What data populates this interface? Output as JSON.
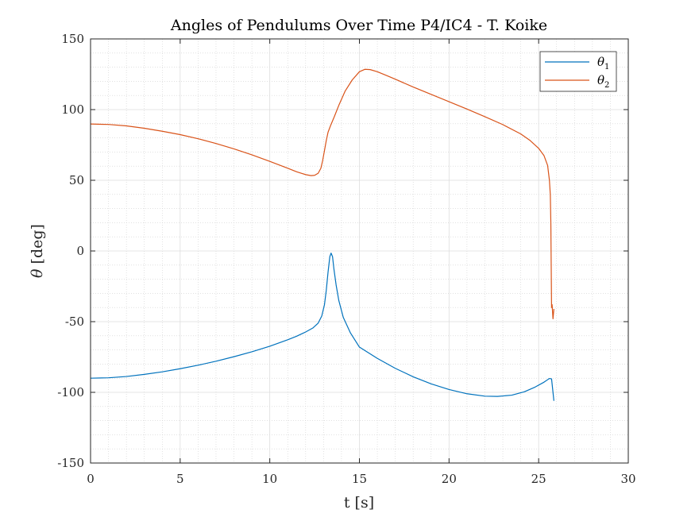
{
  "chart_data": {
    "type": "line",
    "title": "Angles of Pendulums Over Time P4/IC4 - T. Koike",
    "xlabel": "t [s]",
    "ylabel_symbol": "θ",
    "ylabel_unit": "[deg]",
    "xlim": [
      0,
      30
    ],
    "ylim": [
      -150,
      150
    ],
    "xticks": [
      0,
      5,
      10,
      15,
      20,
      25,
      30
    ],
    "yticks": [
      -150,
      -100,
      -50,
      0,
      50,
      100,
      150
    ],
    "xtick_labels": [
      "0",
      "5",
      "10",
      "15",
      "20",
      "25",
      "30"
    ],
    "ytick_labels": [
      "-150",
      "-100",
      "-50",
      "0",
      "50",
      "100",
      "150"
    ],
    "grid": true,
    "minor_grid": true,
    "legend_position": "top-right",
    "series": [
      {
        "name": "θ1",
        "legend_symbol": "θ",
        "legend_subscript": "1",
        "color": "#0072bd",
        "x": [
          0,
          1,
          2,
          3,
          4,
          5,
          6,
          7,
          8,
          9,
          10,
          11,
          11.5,
          12,
          12.4,
          12.7,
          12.9,
          13.05,
          13.15,
          13.25,
          13.35,
          13.42,
          13.5,
          13.58,
          13.7,
          13.85,
          14.1,
          14.5,
          15,
          16,
          17,
          18,
          19,
          20,
          21,
          22,
          22.7,
          23.5,
          24.2,
          24.8,
          25.3,
          25.6,
          25.72,
          25.8,
          25.85
        ],
        "y": [
          -90,
          -89.7,
          -88.8,
          -87.3,
          -85.5,
          -83.3,
          -80.8,
          -78,
          -74.8,
          -71.3,
          -67.4,
          -62.8,
          -60.3,
          -57.3,
          -54.5,
          -51,
          -46,
          -38,
          -28,
          -15,
          -4,
          -1.5,
          -4,
          -13,
          -24,
          -35,
          -47,
          -58,
          -68,
          -76,
          -83,
          -89,
          -94,
          -98,
          -101,
          -102.7,
          -102.9,
          -102,
          -99.6,
          -96.3,
          -92.8,
          -90.2,
          -90.5,
          -100,
          -106
        ]
      },
      {
        "name": "θ2",
        "legend_symbol": "θ",
        "legend_subscript": "2",
        "color": "#d95319",
        "x": [
          0,
          1,
          2,
          3,
          4,
          5,
          6,
          7,
          8,
          9,
          10,
          11,
          11.5,
          12,
          12.3,
          12.5,
          12.7,
          12.85,
          12.95,
          13.05,
          13.15,
          13.25,
          13.4,
          13.6,
          13.85,
          14.2,
          14.6,
          15,
          15.3,
          15.6,
          16,
          16.5,
          17,
          18,
          19,
          20,
          21,
          22,
          23,
          24,
          24.5,
          25,
          25.3,
          25.5,
          25.6,
          25.65,
          25.68,
          25.7,
          25.72,
          25.75,
          25.8,
          25.85
        ],
        "y": [
          89.8,
          89.5,
          88.5,
          86.8,
          84.7,
          82.3,
          79.4,
          76,
          72.2,
          68,
          63.4,
          58.5,
          56,
          54,
          53.3,
          53.5,
          55,
          58.5,
          64,
          71,
          78,
          84,
          89,
          95,
          103,
          113,
          121,
          126.8,
          128.5,
          128.3,
          126.8,
          124.2,
          121.5,
          116,
          110.8,
          105.6,
          100.4,
          95,
          89.4,
          82.8,
          78.4,
          72.6,
          67.4,
          60.5,
          50,
          40,
          20,
          -10,
          -40,
          -38,
          -48,
          -41
        ]
      }
    ]
  }
}
